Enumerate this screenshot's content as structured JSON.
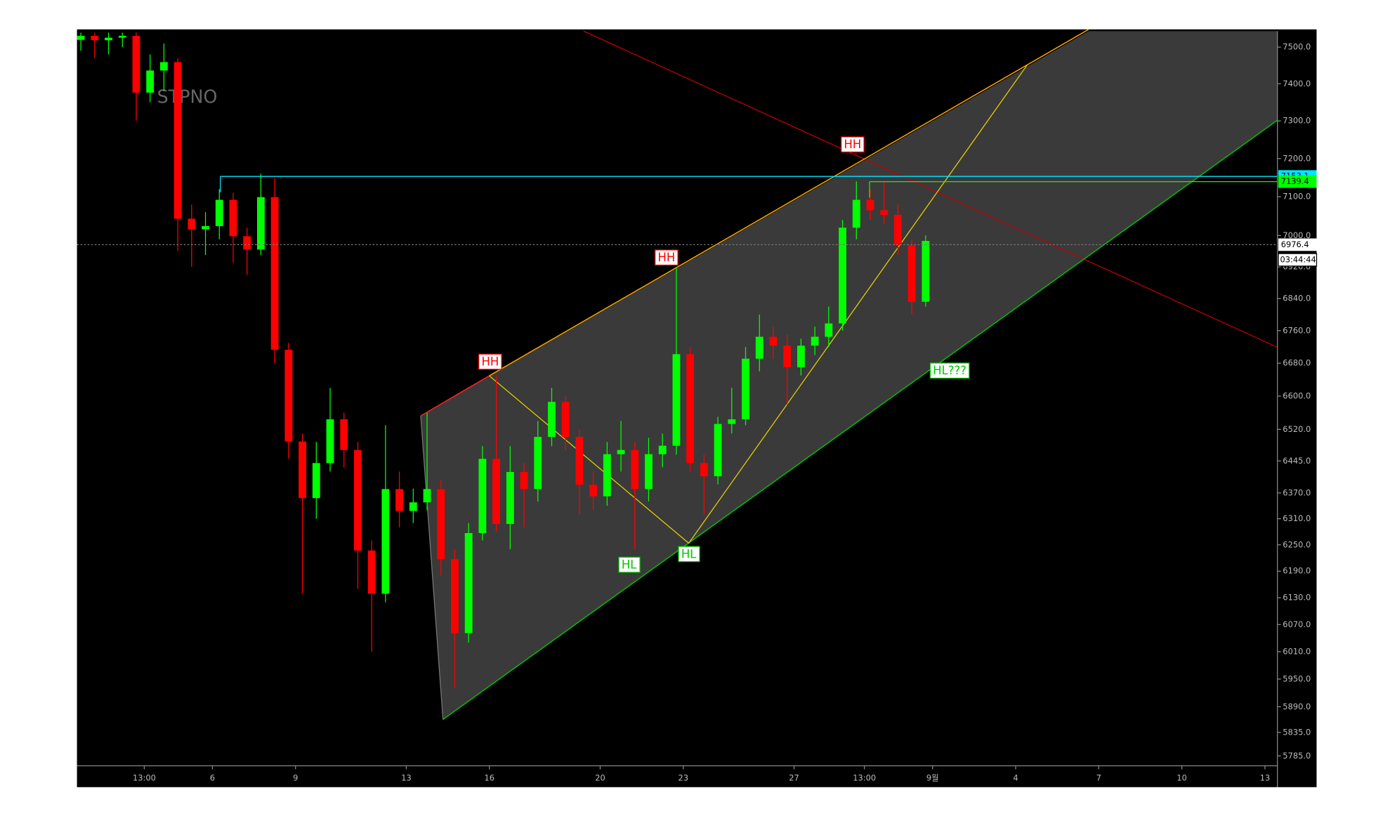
{
  "chart_data": {
    "type": "candlestick",
    "watermark": "STPNO",
    "log_scale": true,
    "up_color": "#00ff00",
    "down_color": "#ff0000",
    "x": [
      1.25,
      1.75,
      2.25,
      2.75,
      3.25,
      3.75,
      4.25,
      4.75,
      5.25,
      5.75,
      6.25,
      6.75,
      7.25,
      7.75,
      8.25,
      8.75,
      9.25,
      9.75,
      10.25,
      10.75,
      11.25,
      11.75,
      12.25,
      12.75,
      13.25,
      13.75,
      14.25,
      14.75,
      15.25,
      15.75,
      16.25,
      16.75,
      17.25,
      17.75,
      18.25,
      18.75,
      19.25,
      19.75,
      20.25,
      20.75,
      21.25,
      21.75,
      22.25,
      22.75,
      23.25,
      23.75,
      24.25,
      24.75,
      25.25,
      25.75,
      26.25,
      26.75,
      27.25,
      27.75,
      28.25,
      28.75,
      29.25,
      29.75,
      30.25,
      30.75,
      31.25,
      31.75
    ],
    "open": [
      7520,
      7531,
      7519,
      7526,
      7531,
      7376,
      7436,
      7459,
      7043,
      7016,
      7024,
      7092,
      6998,
      6964,
      7099,
      6713,
      6491,
      6358,
      6440,
      6544,
      6471,
      6237,
      6139,
      6379,
      6328,
      6348,
      6379,
      6217,
      6051,
      6277,
      6450,
      6298,
      6419,
      6379,
      6502,
      6586,
      6502,
      6389,
      6362,
      6461,
      6471,
      6379,
      6461,
      6481,
      6702,
      6440,
      6409,
      6533,
      6544,
      6691,
      6745,
      6723,
      6670,
      6723,
      6745,
      6778,
      7020,
      7092,
      7065,
      7053,
      6975,
      6832
    ],
    "high": [
      7540,
      7540,
      7540,
      7540,
      7540,
      7480,
      7510,
      7470,
      7080,
      7060,
      7120,
      7110,
      7020,
      7160,
      7150,
      6730,
      6510,
      6490,
      6620,
      6560,
      6490,
      6260,
      6530,
      6420,
      6380,
      6560,
      6400,
      6240,
      6300,
      6480,
      6650,
      6480,
      6440,
      6540,
      6620,
      6600,
      6520,
      6420,
      6490,
      6540,
      6490,
      6500,
      6510,
      6920,
      6720,
      6460,
      6550,
      6620,
      6720,
      6800,
      6770,
      6750,
      6740,
      6770,
      6820,
      7040,
      7140,
      7120,
      7140,
      7080,
      6990,
      7000
    ],
    "low": [
      7490,
      7470,
      7480,
      7500,
      7300,
      7350,
      7380,
      6960,
      6920,
      6950,
      6990,
      6930,
      6900,
      6950,
      6680,
      6450,
      6140,
      6310,
      6420,
      6430,
      6150,
      6010,
      6120,
      6290,
      6300,
      6330,
      6180,
      5930,
      6030,
      6260,
      6280,
      6240,
      6290,
      6350,
      6480,
      6470,
      6320,
      6330,
      6340,
      6420,
      6240,
      6350,
      6430,
      6460,
      6420,
      6320,
      6390,
      6510,
      6530,
      6660,
      6690,
      6580,
      6650,
      6700,
      6720,
      6760,
      6990,
      7040,
      7030,
      6950,
      6800,
      6820
    ],
    "close": [
      7531,
      7519,
      7526,
      7531,
      7376,
      7436,
      7459,
      7043,
      7016,
      7024,
      7092,
      6998,
      6964,
      7099,
      6713,
      6491,
      6358,
      6440,
      6544,
      6471,
      6237,
      6139,
      6379,
      6328,
      6348,
      6379,
      6217,
      6051,
      6277,
      6450,
      6298,
      6419,
      6379,
      6502,
      6586,
      6502,
      6389,
      6362,
      6461,
      6471,
      6379,
      6461,
      6481,
      6702,
      6440,
      6409,
      6533,
      6544,
      6691,
      6745,
      6723,
      6670,
      6723,
      6745,
      6778,
      7020,
      7092,
      7065,
      7053,
      6975,
      6832,
      6986
    ],
    "xlim": [
      1.11,
      44.45
    ],
    "xticks": [
      {
        "value": 3.54,
        "label": "13:00"
      },
      6,
      9,
      13,
      16,
      20,
      23,
      27,
      {
        "value": 29.54,
        "label": "13:00"
      },
      {
        "value": 32,
        "label": "9월"
      },
      {
        "value": 35,
        "label": "4"
      },
      {
        "value": 38,
        "label": "7"
      },
      {
        "value": 41,
        "label": "10"
      },
      {
        "value": 44,
        "label": "13"
      }
    ],
    "ylim": [
      5764,
      7544
    ],
    "yticks": [
      {
        "value": 7500,
        "label": "7500.0"
      },
      {
        "value": 7400,
        "label": "7400.0"
      },
      {
        "value": 7300,
        "label": "7300.0"
      },
      {
        "value": 7200,
        "label": "7200.0"
      },
      {
        "value": 7100,
        "label": "7100.0"
      },
      {
        "value": 7000,
        "label": "7000.0"
      },
      {
        "value": 6920,
        "label": "6920.0"
      },
      {
        "value": 6840,
        "label": "6840.0"
      },
      {
        "value": 6760,
        "label": "6760.0"
      },
      {
        "value": 6680,
        "label": "6680.0"
      },
      {
        "value": 6600,
        "label": "6600.0"
      },
      {
        "value": 6520,
        "label": "6520.0"
      },
      {
        "value": 6445,
        "label": "6445.0"
      },
      {
        "value": 6370,
        "label": "6370.0"
      },
      {
        "value": 6310,
        "label": "6310.0"
      },
      {
        "value": 6250,
        "label": "6250.0"
      },
      {
        "value": 6190,
        "label": "6190.0"
      },
      {
        "value": 6130,
        "label": "6130.0"
      },
      {
        "value": 6070,
        "label": "6070.0"
      },
      {
        "value": 6010,
        "label": "6010.0"
      },
      {
        "value": 5950,
        "label": "5950.0"
      },
      {
        "value": 5890,
        "label": "5890.0"
      },
      {
        "value": 5835,
        "label": "5835.0"
      },
      {
        "value": 5785,
        "label": "5785.0"
      }
    ],
    "price_lines": [
      {
        "value": 7153.1,
        "color": "#00e5ff"
      },
      {
        "value": 7139.4,
        "color": "#00ff00"
      },
      {
        "value": 6976.4,
        "color": "#ffffff"
      }
    ],
    "countdown": "03:44:44",
    "annotations": [
      {
        "text": "HH",
        "color": "#ff0000"
      },
      {
        "text": "HH",
        "color": "#ff0000"
      },
      {
        "text": "HH",
        "color": "#ff0000"
      },
      {
        "text": "HL",
        "color": "#00c800"
      },
      {
        "text": "HL",
        "color": "#00c800"
      },
      {
        "text": "HL???",
        "color": "#00c800"
      }
    ]
  }
}
